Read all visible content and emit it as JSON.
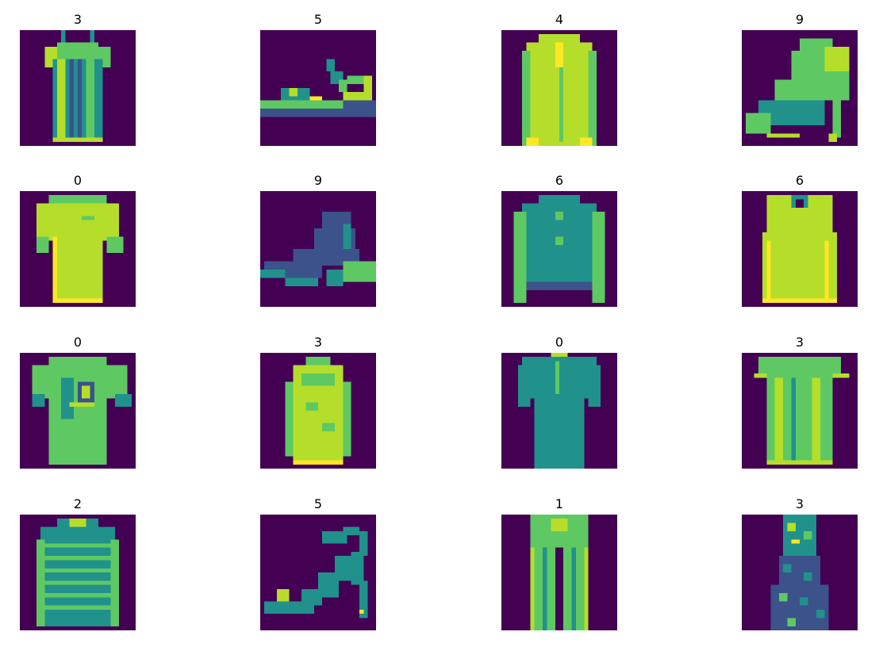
{
  "figure": {
    "panels": [
      {
        "label": "3",
        "item": "dress"
      },
      {
        "label": "5",
        "item": "sandal"
      },
      {
        "label": "4",
        "item": "coat"
      },
      {
        "label": "9",
        "item": "ankle-boot"
      },
      {
        "label": "0",
        "item": "t-shirt"
      },
      {
        "label": "9",
        "item": "ankle-boot"
      },
      {
        "label": "6",
        "item": "shirt"
      },
      {
        "label": "6",
        "item": "shirt"
      },
      {
        "label": "0",
        "item": "t-shirt"
      },
      {
        "label": "3",
        "item": "dress"
      },
      {
        "label": "0",
        "item": "t-shirt"
      },
      {
        "label": "3",
        "item": "dress"
      },
      {
        "label": "2",
        "item": "pullover"
      },
      {
        "label": "5",
        "item": "sandal"
      },
      {
        "label": "1",
        "item": "trouser"
      },
      {
        "label": "3",
        "item": "dress"
      }
    ],
    "colormap": {
      "background": "#440154",
      "dark": "#3b528b",
      "mid": "#21918c",
      "light": "#5ec962",
      "bright": "#b5de2b",
      "max": "#fde725"
    }
  }
}
